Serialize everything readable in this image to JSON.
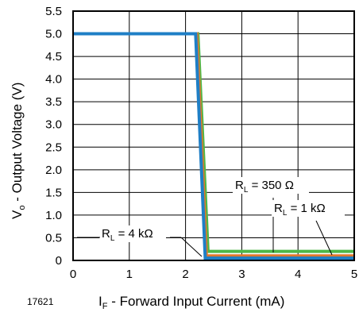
{
  "chart_data": {
    "type": "line",
    "xlabel_main": "I",
    "xlabel_sub": "F",
    "xlabel_rest": " - Forward Input Current (mA)",
    "ylabel_main": "V",
    "ylabel_sub": "o",
    "ylabel_rest": " - Output Voltage (V)",
    "xlim": [
      0,
      5
    ],
    "ylim": [
      0,
      5.5
    ],
    "x_ticks": [
      "0",
      "1",
      "2",
      "3",
      "4",
      "5"
    ],
    "y_ticks": [
      "0",
      "0.5",
      "1.0",
      "1.5",
      "2.0",
      "2.5",
      "3.0",
      "3.5",
      "4.0",
      "4.5",
      "5.0",
      "5.5"
    ],
    "grid": true,
    "figure_number": "17621",
    "series": [
      {
        "key": "rl350",
        "label_main": "R",
        "label_sub": "L",
        "label_rest": " = 350 Ω",
        "color": "#4cb848",
        "x": [
          0,
          2.22,
          2.4,
          5
        ],
        "y": [
          5.0,
          5.0,
          0.2,
          0.2
        ]
      },
      {
        "key": "rl1k",
        "label_main": "R",
        "label_sub": "L",
        "label_rest": " = 1 kΩ",
        "color": "#e0782c",
        "x": [
          0,
          2.2,
          2.37,
          5
        ],
        "y": [
          5.0,
          5.0,
          0.1,
          0.1
        ]
      },
      {
        "key": "rl4k",
        "label_main": "R",
        "label_sub": "L",
        "label_rest": " = 4 kΩ",
        "color": "#1f7fc6",
        "x": [
          0,
          2.18,
          2.35,
          5
        ],
        "y": [
          5.0,
          5.0,
          0.05,
          0.05
        ]
      }
    ]
  }
}
